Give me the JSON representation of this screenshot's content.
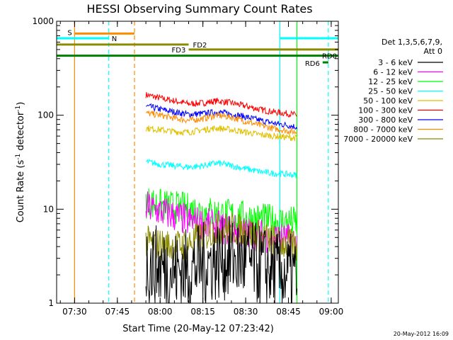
{
  "chart_data": {
    "type": "line",
    "title": "HESSI Observing Summary Count Rates",
    "xlabel": "Start Time (20-May-12 07:23:42)",
    "ylabel_main": "Count Rate (s",
    "ylabel_sup1": "-1",
    "ylabel_mid": " detector",
    "ylabel_sup2": "-1",
    "ylabel_end": ")",
    "yscale": "log",
    "ylim": [
      1,
      1000
    ],
    "xlim": [
      "07:23:42",
      "09:02:30"
    ],
    "x_ticks": [
      "07:30",
      "07:45",
      "08:00",
      "08:15",
      "08:30",
      "08:45",
      "09:00"
    ],
    "y_ticks": [
      {
        "value": 1,
        "label": "1"
      },
      {
        "value": 10,
        "label": "10"
      },
      {
        "value": 100,
        "label": "100"
      },
      {
        "value": 1000,
        "label": "1000"
      }
    ],
    "legend": {
      "position": "right",
      "header": [
        "Det 1,3,5,6,7,9,",
        "Att 0"
      ],
      "entries": [
        {
          "label": "3 - 6 keV",
          "color": "#000000"
        },
        {
          "label": "6 - 12 keV",
          "color": "#ff00ff"
        },
        {
          "label": "12 - 25 keV",
          "color": "#00ff00"
        },
        {
          "label": "25 - 50 keV",
          "color": "#00ffff"
        },
        {
          "label": "50 - 100 keV",
          "color": "#e0c000"
        },
        {
          "label": "100 - 300 keV",
          "color": "#ff0000"
        },
        {
          "label": "300 - 800 keV",
          "color": "#0000ff"
        },
        {
          "label": "800 - 7000 keV",
          "color": "#ff8c00"
        },
        {
          "label": "7000 - 20000 keV",
          "color": "#8b8b00"
        }
      ]
    },
    "series": [
      {
        "color": "#ff0000",
        "points": [
          [
            "07:55",
            165
          ],
          [
            "08:00",
            152
          ],
          [
            "08:05",
            142
          ],
          [
            "08:10",
            132
          ],
          [
            "08:15",
            135
          ],
          [
            "08:20",
            142
          ],
          [
            "08:25",
            135
          ],
          [
            "08:30",
            125
          ],
          [
            "08:35",
            115
          ],
          [
            "08:40",
            108
          ],
          [
            "08:45",
            104
          ],
          [
            "08:48",
            100
          ]
        ]
      },
      {
        "color": "#0000ff",
        "points": [
          [
            "07:55",
            125
          ],
          [
            "08:00",
            116
          ],
          [
            "08:05",
            108
          ],
          [
            "08:10",
            102
          ],
          [
            "08:15",
            104
          ],
          [
            "08:20",
            108
          ],
          [
            "08:25",
            103
          ],
          [
            "08:30",
            96
          ],
          [
            "08:35",
            88
          ],
          [
            "08:40",
            82
          ],
          [
            "08:45",
            78
          ],
          [
            "08:48",
            75
          ]
        ]
      },
      {
        "color": "#ff8c00",
        "points": [
          [
            "07:55",
            105
          ],
          [
            "08:00",
            100
          ],
          [
            "08:05",
            93
          ],
          [
            "08:10",
            88
          ],
          [
            "08:15",
            92
          ],
          [
            "08:20",
            100
          ],
          [
            "08:25",
            95
          ],
          [
            "08:30",
            86
          ],
          [
            "08:35",
            78
          ],
          [
            "08:40",
            72
          ],
          [
            "08:45",
            68
          ],
          [
            "08:48",
            66
          ]
        ]
      },
      {
        "color": "#e0c000",
        "points": [
          [
            "07:55",
            73
          ],
          [
            "08:00",
            70
          ],
          [
            "08:05",
            67
          ],
          [
            "08:10",
            66
          ],
          [
            "08:15",
            70
          ],
          [
            "08:20",
            73
          ],
          [
            "08:25",
            70
          ],
          [
            "08:30",
            66
          ],
          [
            "08:35",
            62
          ],
          [
            "08:40",
            60
          ],
          [
            "08:45",
            58
          ],
          [
            "08:48",
            57
          ]
        ]
      },
      {
        "color": "#00ffff",
        "points": [
          [
            "07:55",
            32
          ],
          [
            "08:00",
            30
          ],
          [
            "08:05",
            29
          ],
          [
            "08:10",
            28
          ],
          [
            "08:15",
            29
          ],
          [
            "08:20",
            31
          ],
          [
            "08:25",
            29
          ],
          [
            "08:30",
            27
          ],
          [
            "08:35",
            25
          ],
          [
            "08:40",
            24
          ],
          [
            "08:45",
            23.5
          ],
          [
            "08:48",
            23
          ]
        ]
      },
      {
        "color": "#00ff00",
        "points": [
          [
            "07:55",
            12
          ],
          [
            "08:00",
            11
          ],
          [
            "08:05",
            10.5
          ],
          [
            "08:10",
            10
          ],
          [
            "08:15",
            9.5
          ],
          [
            "08:20",
            9
          ],
          [
            "08:25",
            8.6
          ],
          [
            "08:30",
            8.2
          ],
          [
            "08:35",
            7.8
          ],
          [
            "08:40",
            7.5
          ],
          [
            "08:45",
            7.3
          ],
          [
            "08:48",
            7.2
          ]
        ]
      },
      {
        "color": "#ff00ff",
        "points": [
          [
            "07:55",
            10.5
          ],
          [
            "08:00",
            9.5
          ],
          [
            "08:05",
            8.5
          ],
          [
            "08:10",
            7.5
          ],
          [
            "08:15",
            7
          ],
          [
            "08:20",
            6.5
          ],
          [
            "08:25",
            6
          ],
          [
            "08:30",
            5.6
          ],
          [
            "08:35",
            5.3
          ],
          [
            "08:40",
            5
          ],
          [
            "08:45",
            4.7
          ],
          [
            "08:48",
            4.5
          ]
        ]
      },
      {
        "color": "#8b8b00",
        "points": [
          [
            "07:55",
            4.5
          ],
          [
            "08:00",
            4.2
          ],
          [
            "08:05",
            4
          ],
          [
            "08:10",
            4.3
          ],
          [
            "08:15",
            5.2
          ],
          [
            "08:20",
            6
          ],
          [
            "08:25",
            6.2
          ],
          [
            "08:30",
            5.8
          ],
          [
            "08:35",
            5.2
          ],
          [
            "08:40",
            4.6
          ],
          [
            "08:45",
            4.2
          ],
          [
            "08:48",
            4
          ]
        ]
      },
      {
        "color": "#000000",
        "points": [
          [
            "07:55",
            2.6
          ],
          [
            "08:00",
            2.4
          ],
          [
            "08:05",
            2.2
          ],
          [
            "08:10",
            2.3
          ],
          [
            "08:15",
            2.6
          ],
          [
            "08:20",
            2.9
          ],
          [
            "08:25",
            3
          ],
          [
            "08:30",
            2.8
          ],
          [
            "08:35",
            2.5
          ],
          [
            "08:40",
            2.2
          ],
          [
            "08:45",
            2
          ],
          [
            "08:48",
            1.9
          ]
        ]
      }
    ],
    "vertical_markers": [
      {
        "t": "07:30",
        "color": "#ff8c00",
        "style": "solid"
      },
      {
        "t": "07:42",
        "color": "#00ffff",
        "style": "dashed"
      },
      {
        "t": "07:51",
        "color": "#ff8c00",
        "style": "dashed"
      },
      {
        "t": "08:42",
        "color": "#00ffff",
        "style": "solid"
      },
      {
        "t": "08:48",
        "color": "#00ff00",
        "style": "solid"
      },
      {
        "t": "08:59",
        "color": "#00ffff",
        "style": "dashed"
      }
    ],
    "flag_bars": [
      {
        "label": "S",
        "color": "#ff8c00",
        "start": "07:30",
        "end": "07:51",
        "value": 740
      },
      {
        "label": "N",
        "color": "#00ffff",
        "start": "07:23:42",
        "end": "07:42",
        "value": 660
      },
      {
        "label": "",
        "color": "#00ffff",
        "start": "08:42",
        "end": "09:02:30",
        "value": 660
      },
      {
        "label": "FD2",
        "color": "#8b8b00",
        "start": "07:23:42",
        "end": "08:10",
        "value": 565
      },
      {
        "label": "FD3",
        "color": "#8b8b00",
        "start": "08:10",
        "end": "09:02:30",
        "value": 500
      },
      {
        "label": "RD0",
        "color": "#008000",
        "start": "07:23:42",
        "end": "09:02:30",
        "value": 430
      },
      {
        "label": "RD6",
        "color": "#008000",
        "start": "08:57",
        "end": "08:59",
        "value": 365
      }
    ],
    "grid": false
  },
  "timestamp": "20-May-2012 16:09"
}
